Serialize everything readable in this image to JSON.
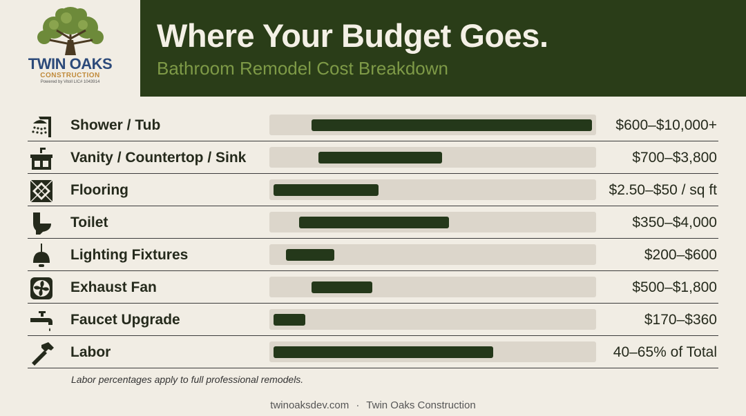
{
  "logo": {
    "brand": "TWIN OAKS",
    "sub": "CONSTRUCTION",
    "tiny": "Powered by Vitoll LIC# 1043914"
  },
  "header": {
    "title": "Where Your Budget Goes.",
    "subtitle": "Bathroom Remodel Cost Breakdown"
  },
  "chart_data": {
    "type": "bar",
    "title": "Where Your Budget Goes.",
    "subtitle": "Bathroom Remodel Cost Breakdown",
    "categories": [
      "Shower / Tub",
      "Vanity / Countertop / Sink",
      "Flooring",
      "Toilet",
      "Lighting Fixtures",
      "Exhaust Fan",
      "Faucet Upgrade",
      "Labor"
    ],
    "value_labels": [
      "$600–$10,000+",
      "$700–$3,800",
      "$2.50–$50 / sq ft",
      "$350–$4,000",
      "$200–$600",
      "$500–$1,800",
      "$170–$360",
      "40–65% of Total"
    ],
    "ranges": [
      {
        "start": 0.12,
        "end": 1.0
      },
      {
        "start": 0.14,
        "end": 0.53
      },
      {
        "start": 0.0,
        "end": 0.33
      },
      {
        "start": 0.08,
        "end": 0.55
      },
      {
        "start": 0.04,
        "end": 0.19
      },
      {
        "start": 0.12,
        "end": 0.31
      },
      {
        "start": 0.0,
        "end": 0.1
      },
      {
        "start": 0.0,
        "end": 0.69
      }
    ],
    "icons": [
      "shower-icon",
      "vanity-icon",
      "tile-icon",
      "toilet-icon",
      "pendant-light-icon",
      "fan-icon",
      "faucet-icon",
      "hammer-icon"
    ],
    "colors": {
      "bar": "#24381a",
      "track": "#dcd6cb"
    }
  },
  "note": "Labor percentages apply to full professional remodels.",
  "footer": {
    "site": "twinoaksdev.com",
    "separator": "·",
    "company": "Twin Oaks Construction"
  }
}
